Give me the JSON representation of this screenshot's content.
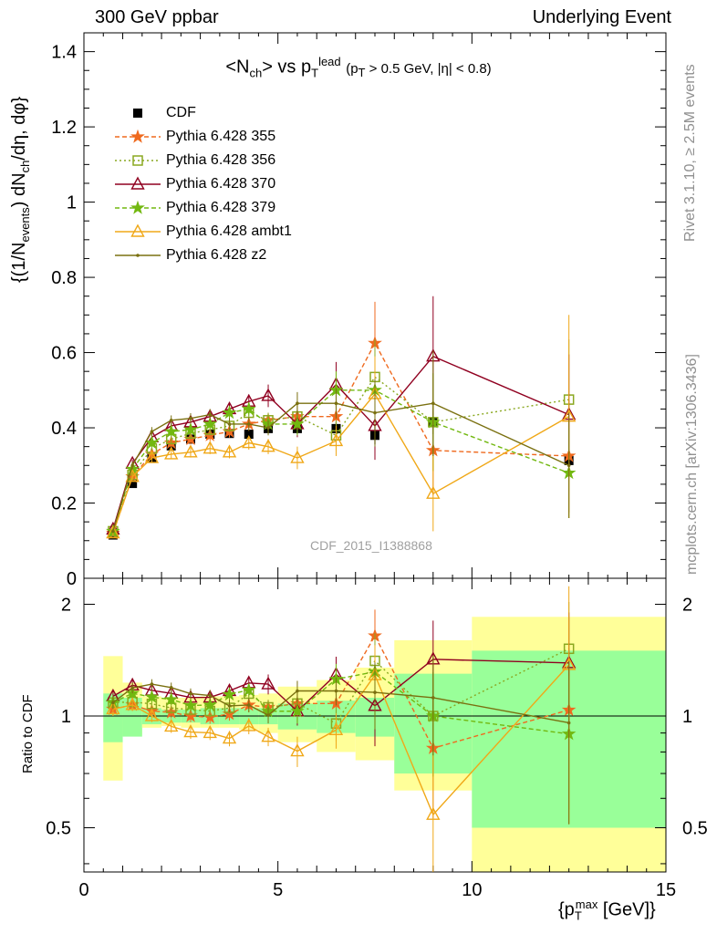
{
  "header": {
    "left": "300 GeV ppbar",
    "right": "Underlying Event"
  },
  "side_text": {
    "top": "Rivet 3.1.10, ≥ 2.5M events",
    "bottom": "mcplots.cern.ch [arXiv:1306.3436]"
  },
  "title": {
    "main": "<N",
    "main_sub": "ch",
    "main_mid": "> vs p",
    "main_sup": "lead",
    "main_sub2": "T",
    "cut": "(p",
    "cut_sub": "T",
    "cut_rest": " > 0.5 GeV, |η| < 0.8)"
  },
  "ylabel_top": "{(1/N_events) dN_ch/dη, dφ}",
  "ylabel_top_parts": {
    "a": "{(1/N",
    "a_sub": "events",
    "b": ") dN",
    "b_sub": "ch",
    "c": "/dη, dφ}"
  },
  "ylabel_bottom": "Ratio to CDF",
  "xlabel": {
    "a": "{p",
    "sub": "T",
    "sup": "max",
    "b": " [GeV]}"
  },
  "watermark": "CDF_2015_I1388868",
  "colors": {
    "data": "#000000",
    "p355": "#ef6a1f",
    "p356": "#8aa820",
    "p370": "#900020",
    "p379": "#72b810",
    "ambt1": "#f0a818",
    "z2": "#7a7010",
    "band_yellow": "#ffff99",
    "band_green": "#99ff99"
  },
  "legend": [
    {
      "label": "CDF",
      "key": "data"
    },
    {
      "label": "Pythia 6.428 355",
      "key": "p355"
    },
    {
      "label": "Pythia 6.428 356",
      "key": "p356"
    },
    {
      "label": "Pythia 6.428 370",
      "key": "p370"
    },
    {
      "label": "Pythia 6.428 379",
      "key": "p379"
    },
    {
      "label": "Pythia 6.428 ambt1",
      "key": "ambt1"
    },
    {
      "label": "Pythia 6.428 z2",
      "key": "z2"
    }
  ],
  "chart_data": {
    "type": "scatter",
    "x_label": "{p_T^max [GeV]}",
    "xlim": [
      0,
      15
    ],
    "x_ticks": [
      "0",
      "5",
      "10",
      "15"
    ],
    "main": {
      "ylim": [
        0,
        1.45
      ],
      "y_ticks": [
        "0",
        "0.2",
        "0.4",
        "0.6",
        "0.8",
        "1",
        "1.2",
        "1.4"
      ]
    },
    "ratio": {
      "ylim": [
        0.38,
        2.35
      ],
      "y_ticks_left": [
        "0.5",
        "1",
        "2"
      ],
      "y_ticks_right": [
        "0.5",
        "1",
        "2"
      ],
      "log_scale": true
    },
    "x": [
      0.75,
      1.25,
      1.75,
      2.25,
      2.75,
      3.25,
      3.75,
      4.25,
      4.75,
      5.5,
      6.5,
      7.5,
      9.0,
      12.5
    ],
    "x_bins": [
      [
        0.5,
        1.0
      ],
      [
        1.0,
        1.5
      ],
      [
        1.5,
        2.0
      ],
      [
        2.0,
        2.5
      ],
      [
        2.5,
        3.0
      ],
      [
        3.0,
        3.5
      ],
      [
        3.5,
        4.0
      ],
      [
        4.0,
        4.5
      ],
      [
        4.5,
        5.0
      ],
      [
        5.0,
        6.0
      ],
      [
        6.0,
        7.0
      ],
      [
        7.0,
        8.0
      ],
      [
        8.0,
        10.0
      ],
      [
        10.0,
        15.0
      ]
    ],
    "data": {
      "name": "CDF",
      "y": [
        0.115,
        0.252,
        0.32,
        0.352,
        0.37,
        0.383,
        0.385,
        0.383,
        0.398,
        0.398,
        0.398,
        0.38,
        0.415,
        0.313
      ],
      "err": [
        0.004,
        0.006,
        0.008,
        0.009,
        0.01,
        0.01,
        0.011,
        0.012,
        0.013,
        0.014,
        0.018,
        0.024,
        0.032,
        0.03
      ]
    },
    "band_green": [
      0.15,
      0.12,
      0.05,
      0.04,
      0.04,
      0.05,
      0.05,
      0.05,
      0.05,
      0.08,
      0.1,
      0.12,
      0.3,
      0.5
    ],
    "band_yellow": [
      [
        0.67,
        1.45
      ],
      [
        0.89,
        1.23
      ],
      [
        0.93,
        1.13
      ],
      [
        0.94,
        1.12
      ],
      [
        0.93,
        1.12
      ],
      [
        0.93,
        1.13
      ],
      [
        0.93,
        1.13
      ],
      [
        0.92,
        1.14
      ],
      [
        0.9,
        1.15
      ],
      [
        0.85,
        1.2
      ],
      [
        0.8,
        1.25
      ],
      [
        0.76,
        1.35
      ],
      [
        0.63,
        1.6
      ],
      [
        0.33,
        1.85
      ]
    ],
    "series": [
      {
        "name": "Pythia 6.428 355",
        "key": "p355",
        "marker": "star",
        "dash": "5,3",
        "y": [
          0.12,
          0.27,
          0.33,
          0.36,
          0.37,
          0.38,
          0.39,
          0.41,
          0.42,
          0.43,
          0.43,
          0.625,
          0.34,
          0.325
        ],
        "err": [
          0.005,
          0.01,
          0.012,
          0.013,
          0.014,
          0.015,
          0.016,
          0.018,
          0.02,
          0.03,
          0.04,
          0.11,
          0.12,
          0.15
        ]
      },
      {
        "name": "Pythia 6.428 356",
        "key": "p356",
        "marker": "square",
        "dash": "2,3",
        "y": [
          0.125,
          0.275,
          0.345,
          0.37,
          0.385,
          0.395,
          0.405,
          0.44,
          0.42,
          0.43,
          0.38,
          0.535,
          0.415,
          0.475
        ],
        "err": [
          0.005,
          0.01,
          0.012,
          0.013,
          0.014,
          0.015,
          0.016,
          0.018,
          0.02,
          0.03,
          0.04,
          0.1,
          0.13,
          0.16
        ]
      },
      {
        "name": "Pythia 6.428 370",
        "key": "p370",
        "marker": "triangle",
        "dash": "",
        "y": [
          0.13,
          0.305,
          0.375,
          0.405,
          0.415,
          0.43,
          0.45,
          0.47,
          0.485,
          0.41,
          0.515,
          0.405,
          0.59,
          0.435
        ],
        "err": [
          0.005,
          0.01,
          0.012,
          0.013,
          0.014,
          0.015,
          0.016,
          0.018,
          0.03,
          0.035,
          0.06,
          0.09,
          0.16,
          0.16
        ]
      },
      {
        "name": "Pythia 6.428 379",
        "key": "p379",
        "marker": "star",
        "dash": "5,3",
        "y": [
          0.125,
          0.29,
          0.36,
          0.39,
          0.395,
          0.41,
          0.44,
          0.45,
          0.41,
          0.41,
          0.5,
          0.5,
          0.415,
          0.28
        ],
        "err": [
          0.005,
          0.01,
          0.012,
          0.013,
          0.014,
          0.015,
          0.016,
          0.018,
          0.02,
          0.03,
          0.05,
          0.09,
          0.13,
          0.12
        ]
      },
      {
        "name": "Pythia 6.428 ambt1",
        "key": "ambt1",
        "marker": "triangle",
        "dash": "",
        "y": [
          0.12,
          0.27,
          0.32,
          0.33,
          0.335,
          0.345,
          0.335,
          0.36,
          0.35,
          0.32,
          0.365,
          0.49,
          0.225,
          0.43
        ],
        "err": [
          0.005,
          0.01,
          0.012,
          0.013,
          0.014,
          0.015,
          0.016,
          0.018,
          0.02,
          0.03,
          0.04,
          0.1,
          0.1,
          0.27
        ]
      },
      {
        "name": "Pythia 6.428 z2",
        "key": "z2",
        "marker": "dot",
        "dash": "",
        "y": [
          0.125,
          0.3,
          0.39,
          0.42,
          0.425,
          0.435,
          0.41,
          0.41,
          0.4,
          0.465,
          0.465,
          0.44,
          0.465,
          0.3
        ],
        "err": [
          0.005,
          0.01,
          0.012,
          0.013,
          0.014,
          0.015,
          0.016,
          0.018,
          0.02,
          0.03,
          0.04,
          0.09,
          0.14,
          0.14
        ]
      }
    ]
  }
}
